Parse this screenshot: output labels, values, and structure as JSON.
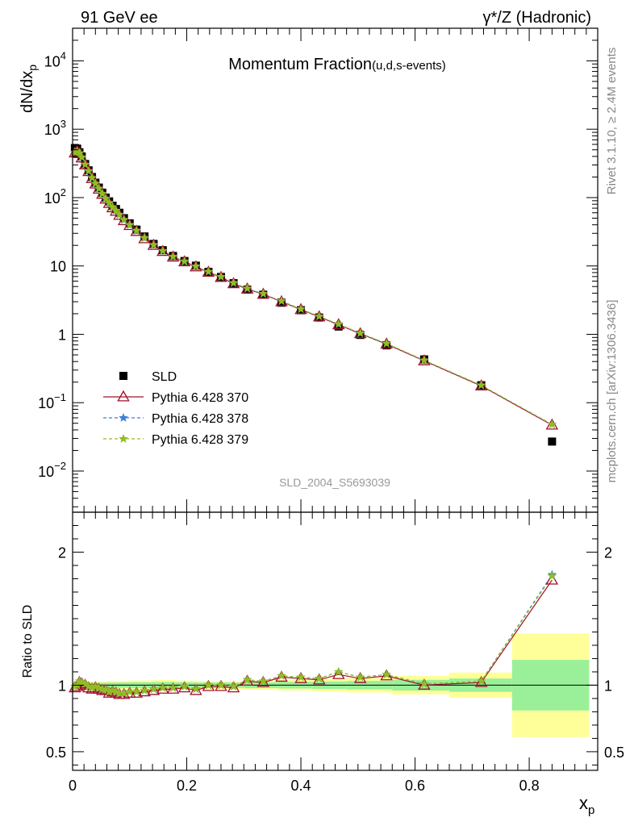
{
  "header": {
    "left": "91 GeV ee",
    "right": "γ*/Z (Hadronic)"
  },
  "side_text": {
    "rivet": "Rivet 3.1.10, ≥ 2.4M events",
    "mcplots": "mcplots.cern.ch [arXiv:1306.3436]"
  },
  "watermark": "SLD_2004_S5693039",
  "chart_data": [
    {
      "type": "scatter",
      "title_main": "Momentum Fraction",
      "title_sub": "(u,d,s-events)",
      "ylabel_base": "dN/dx",
      "ylabel_sub": "p",
      "yscale": "log",
      "ylim": [
        0.0025,
        30000
      ],
      "xlim": [
        0,
        0.92
      ],
      "y_ticks": [
        {
          "v": 0.01,
          "base": "10",
          "exp": "−2"
        },
        {
          "v": 0.1,
          "base": "10",
          "exp": "−1"
        },
        {
          "v": 1,
          "base": "1",
          "exp": ""
        },
        {
          "v": 10,
          "base": "10",
          "exp": ""
        },
        {
          "v": 100,
          "base": "10",
          "exp": "2"
        },
        {
          "v": 1000,
          "base": "10",
          "exp": "3"
        },
        {
          "v": 10000,
          "base": "10",
          "exp": "4"
        }
      ],
      "x": [
        0.004,
        0.008,
        0.012,
        0.016,
        0.022,
        0.028,
        0.034,
        0.04,
        0.046,
        0.052,
        0.058,
        0.064,
        0.07,
        0.076,
        0.082,
        0.09,
        0.1,
        0.112,
        0.126,
        0.142,
        0.158,
        0.176,
        0.196,
        0.216,
        0.238,
        0.26,
        0.282,
        0.306,
        0.334,
        0.366,
        0.4,
        0.432,
        0.466,
        0.504,
        0.55,
        0.616,
        0.716,
        0.84
      ],
      "series": [
        {
          "name": "SLD",
          "marker": "square",
          "color": "#000000",
          "values": [
            530,
            520,
            460,
            400,
            310,
            250,
            200,
            165,
            140,
            118,
            100,
            88,
            76,
            68,
            60,
            50,
            42,
            34,
            27,
            21,
            17,
            14,
            11.8,
            10.1,
            8.2,
            6.9,
            5.6,
            4.5,
            3.8,
            2.9,
            2.25,
            1.76,
            1.3,
            0.98,
            0.69,
            0.43,
            0.18,
            0.027
          ]
        },
        {
          "name": "Pythia 6.428 370",
          "marker": "triangle-open",
          "color": "#a0102a",
          "values": [
            450,
            470,
            440,
            380,
            300,
            240,
            190,
            158,
            133,
            112,
            95,
            82,
            71,
            63,
            55,
            46,
            39,
            32,
            25,
            20,
            16.3,
            13.5,
            11.5,
            9.7,
            8.1,
            6.8,
            5.5,
            4.6,
            3.85,
            3.0,
            2.3,
            1.8,
            1.38,
            1.02,
            0.72,
            0.41,
            0.176,
            0.047
          ]
        },
        {
          "name": "Pythia 6.428 378",
          "marker": "star",
          "color": "#3a7fd5",
          "values": [
            455,
            475,
            445,
            385,
            303,
            243,
            193,
            160,
            135,
            113,
            96,
            83,
            72,
            64,
            56,
            47,
            39.5,
            32.5,
            25.5,
            20.2,
            16.5,
            13.6,
            11.6,
            9.8,
            8.2,
            6.9,
            5.6,
            4.65,
            3.9,
            3.05,
            2.33,
            1.82,
            1.4,
            1.03,
            0.73,
            0.415,
            0.179,
            0.048
          ]
        },
        {
          "name": "Pythia 6.428 379",
          "marker": "star",
          "color": "#8fbf1f",
          "values": [
            458,
            478,
            448,
            388,
            305,
            245,
            195,
            161,
            136,
            114,
            97,
            84,
            72.5,
            64.5,
            56.5,
            47.5,
            40,
            33,
            25.8,
            20.4,
            16.6,
            13.7,
            11.7,
            9.9,
            8.25,
            6.95,
            5.65,
            4.7,
            3.92,
            3.07,
            2.34,
            1.83,
            1.41,
            1.04,
            0.735,
            0.417,
            0.18,
            0.048
          ]
        }
      ]
    },
    {
      "type": "line",
      "ylabel": "Ratio to SLD",
      "ylim": [
        0.36,
        2.3
      ],
      "xlim": [
        0,
        0.92
      ],
      "xlabel_base": "x",
      "xlabel_sub": "p",
      "x_ticks": [
        0,
        0.2,
        0.4,
        0.6,
        0.8
      ],
      "x_tick_labels": [
        "0",
        "0.2",
        "0.4",
        "0.6",
        "0.8"
      ],
      "y_ticks": [
        0.5,
        1,
        2
      ],
      "y_tick_labels": [
        "0.5",
        "1",
        "2"
      ],
      "bands": {
        "edges": [
          0,
          0.02,
          0.06,
          0.1,
          0.14,
          0.18,
          0.22,
          0.26,
          0.3,
          0.36,
          0.42,
          0.48,
          0.56,
          0.66,
          0.77,
          0.905
        ],
        "inner": [
          0.02,
          0.018,
          0.02,
          0.022,
          0.024,
          0.022,
          0.02,
          0.02,
          0.022,
          0.025,
          0.028,
          0.032,
          0.04,
          0.05,
          0.19
        ],
        "outer": [
          0.03,
          0.028,
          0.032,
          0.035,
          0.04,
          0.035,
          0.03,
          0.03,
          0.035,
          0.04,
          0.048,
          0.055,
          0.07,
          0.095,
          0.39
        ],
        "inner_color": "#99f099",
        "outer_color": "#ffff99"
      },
      "series": [
        {
          "name": "Pythia 6.428 370",
          "color": "#a0102a",
          "values": [
            0.98,
            0.99,
            1.02,
            1.01,
            1.0,
            0.98,
            0.97,
            0.98,
            0.97,
            0.96,
            0.96,
            0.94,
            0.95,
            0.94,
            0.93,
            0.93,
            0.94,
            0.94,
            0.95,
            0.96,
            0.97,
            0.97,
            0.98,
            0.96,
            0.99,
            0.99,
            0.98,
            1.03,
            1.02,
            1.06,
            1.05,
            1.04,
            1.08,
            1.05,
            1.07,
            1.0,
            1.02,
            1.79
          ]
        },
        {
          "name": "Pythia 6.428 378",
          "color": "#3a7fd5",
          "values": [
            0.99,
            1.0,
            1.03,
            1.02,
            1.01,
            0.99,
            0.98,
            0.99,
            0.98,
            0.97,
            0.97,
            0.95,
            0.96,
            0.95,
            0.94,
            0.94,
            0.95,
            0.95,
            0.96,
            0.97,
            0.98,
            0.98,
            0.99,
            0.97,
            1.0,
            1.0,
            0.99,
            1.04,
            1.03,
            1.07,
            1.06,
            1.05,
            1.1,
            1.06,
            1.08,
            1.01,
            1.03,
            1.83
          ]
        },
        {
          "name": "Pythia 6.428 379",
          "color": "#8fbf1f",
          "values": [
            0.99,
            1.0,
            1.03,
            1.02,
            1.01,
            0.99,
            0.98,
            0.99,
            0.98,
            0.97,
            0.97,
            0.95,
            0.96,
            0.95,
            0.94,
            0.94,
            0.95,
            0.95,
            0.96,
            0.97,
            0.98,
            0.98,
            0.99,
            0.97,
            1.0,
            1.0,
            0.99,
            1.04,
            1.03,
            1.07,
            1.06,
            1.05,
            1.1,
            1.06,
            1.08,
            1.01,
            1.03,
            1.82
          ]
        }
      ]
    }
  ]
}
